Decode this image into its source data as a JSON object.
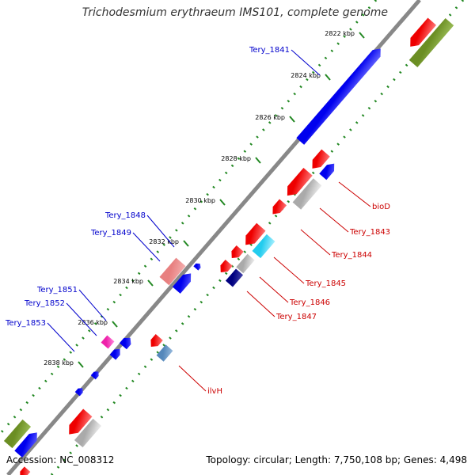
{
  "title": "Trichodesmium erythraeum IMS101, complete genome",
  "accession": "Accession: NC_008312",
  "topology": "Topology: circular; Length: 7,750,108 bp; Genes: 4,498",
  "colors": {
    "backbone": "#888888",
    "dots": "#228822",
    "forward_gene": "#0000ee",
    "reverse_gene": "#ee0000",
    "olive": "#6b8e23",
    "grey": "#bbbbbb",
    "pink": "#e88080",
    "cyan": "#22ccee",
    "navy": "#000080",
    "magenta": "#ee22aa",
    "steel": "#5588bb",
    "forward_label": "#0000cc",
    "reverse_label": "#cc0000"
  },
  "ticks": [
    "2822 kbp",
    "2824 kbp",
    "2826 kbp",
    "2828 kbp",
    "2830 kbp",
    "2832 kbp",
    "2834 kbp",
    "2836 kbp",
    "2838 kbp"
  ],
  "forward_labels": [
    "Tery_1841",
    "Tery_1848",
    "Tery_1849",
    "Tery_1851",
    "Tery_1852",
    "Tery_1853"
  ],
  "reverse_labels": [
    "bioD",
    "Tery_1843",
    "Tery_1844",
    "Tery_1845",
    "Tery_1846",
    "Tery_1847",
    "ilvH"
  ]
}
